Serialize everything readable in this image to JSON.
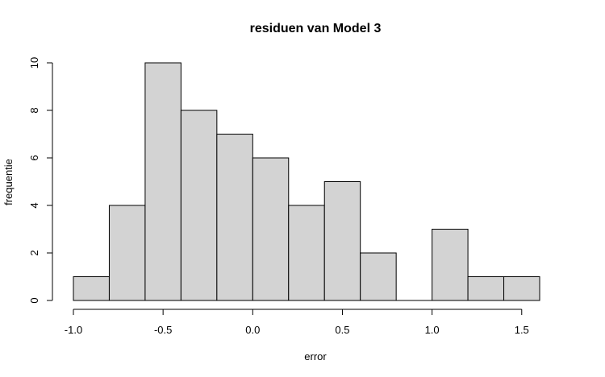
{
  "chart_data": {
    "type": "bar",
    "title": "residuen van Model 3",
    "xlabel": "error",
    "ylabel": "frequentie",
    "bin_edges": [
      -1.0,
      -0.8,
      -0.6,
      -0.4,
      -0.2,
      0.0,
      0.2,
      0.4,
      0.6,
      0.8,
      1.0,
      1.2,
      1.4,
      1.6
    ],
    "values": [
      1,
      4,
      10,
      8,
      7,
      6,
      4,
      5,
      2,
      0,
      3,
      1,
      1
    ],
    "xlim": [
      -1.0,
      1.6
    ],
    "ylim": [
      0,
      10
    ],
    "x_ticks": [
      -1.0,
      -0.5,
      0.0,
      0.5,
      1.0,
      1.5
    ],
    "x_tick_labels": [
      "-1.0",
      "-0.5",
      "0.0",
      "0.5",
      "1.0",
      "1.5"
    ],
    "y_ticks": [
      0,
      2,
      4,
      6,
      8,
      10
    ],
    "y_tick_labels": [
      "0",
      "2",
      "4",
      "6",
      "8",
      "10"
    ],
    "bar_fill": "#d3d3d3",
    "bar_stroke": "#000000",
    "grid": false
  }
}
